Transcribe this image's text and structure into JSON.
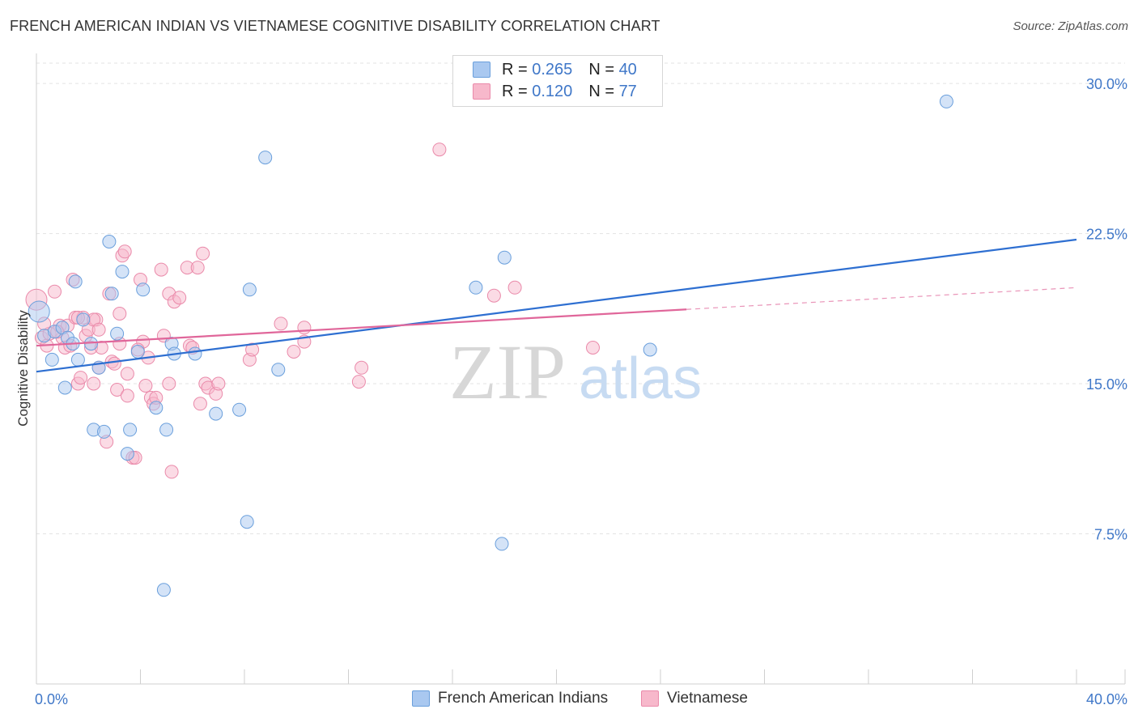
{
  "header": {
    "title": "FRENCH AMERICAN INDIAN VS VIETNAMESE COGNITIVE DISABILITY CORRELATION CHART",
    "source": "Source: ZipAtlas.com"
  },
  "watermark": {
    "zip": "ZIP",
    "atlas": "atlas"
  },
  "legend": {
    "rows": [
      {
        "r_label": "R =",
        "r_value": "0.265",
        "n_label": "N =",
        "n_value": "40",
        "color": "#a9c8f0"
      },
      {
        "r_label": "R =",
        "r_value": "0.120",
        "n_label": "N =",
        "n_value": "77",
        "color": "#f7b8cb"
      }
    ]
  },
  "bottom_legend": {
    "items": [
      {
        "label": "French American Indians",
        "color": "#a9c8f0"
      },
      {
        "label": "Vietnamese",
        "color": "#f7b8cb"
      }
    ]
  },
  "chart_data": {
    "type": "scatter",
    "title": "FRENCH AMERICAN INDIAN VS VIETNAMESE COGNITIVE DISABILITY CORRELATION CHART",
    "xlabel": "",
    "ylabel": "Cognitive Disability",
    "xlim": [
      0,
      40
    ],
    "ylim": [
      0,
      31.5
    ],
    "x_tick_labels": [
      "0.0%",
      "40.0%"
    ],
    "y_ticks": [
      7.5,
      15.0,
      22.5,
      30.0
    ],
    "y_tick_labels": [
      "7.5%",
      "15.0%",
      "22.5%",
      "30.0%"
    ],
    "grid": true,
    "legend_position": "top-center",
    "series": [
      {
        "name": "French American Indians",
        "color": "#a9c8f0",
        "edge_color": "#6a9fdc",
        "line_color": "#2e6fd1",
        "trend": {
          "x": [
            0,
            40
          ],
          "y": [
            15.6,
            22.2
          ],
          "dashed_from": null
        },
        "points": [
          [
            0.1,
            18.6
          ],
          [
            0.3,
            17.4
          ],
          [
            0.6,
            16.2
          ],
          [
            0.7,
            17.6
          ],
          [
            1.0,
            17.8
          ],
          [
            1.1,
            14.8
          ],
          [
            1.2,
            17.3
          ],
          [
            1.4,
            17.0
          ],
          [
            1.5,
            20.1
          ],
          [
            1.6,
            16.2
          ],
          [
            1.8,
            18.2
          ],
          [
            2.1,
            17.0
          ],
          [
            2.2,
            12.7
          ],
          [
            2.4,
            15.8
          ],
          [
            2.6,
            12.6
          ],
          [
            2.8,
            22.1
          ],
          [
            2.9,
            19.5
          ],
          [
            3.1,
            17.5
          ],
          [
            3.3,
            20.6
          ],
          [
            3.5,
            11.5
          ],
          [
            3.6,
            12.7
          ],
          [
            3.9,
            16.6
          ],
          [
            4.1,
            19.7
          ],
          [
            4.6,
            13.8
          ],
          [
            4.9,
            4.7
          ],
          [
            5.0,
            12.7
          ],
          [
            5.2,
            17.0
          ],
          [
            5.3,
            16.5
          ],
          [
            6.1,
            16.5
          ],
          [
            6.9,
            13.5
          ],
          [
            7.8,
            13.7
          ],
          [
            8.1,
            8.1
          ],
          [
            8.2,
            19.7
          ],
          [
            8.8,
            26.3
          ],
          [
            9.3,
            15.7
          ],
          [
            16.9,
            19.8
          ],
          [
            17.9,
            7.0
          ],
          [
            18.0,
            21.3
          ],
          [
            23.6,
            16.7
          ],
          [
            35.0,
            29.1
          ]
        ]
      },
      {
        "name": "Vietnamese",
        "color": "#f7b8cb",
        "edge_color": "#ea8aaa",
        "line_color": "#e0669a",
        "trend": {
          "x": [
            0,
            40
          ],
          "y": [
            16.9,
            19.8
          ],
          "dashed_from": 25
        },
        "points": [
          [
            0.0,
            19.2
          ],
          [
            0.2,
            17.3
          ],
          [
            0.4,
            16.9
          ],
          [
            0.5,
            17.5
          ],
          [
            0.7,
            19.6
          ],
          [
            0.9,
            17.9
          ],
          [
            1.0,
            17.3
          ],
          [
            1.1,
            16.8
          ],
          [
            1.2,
            17.9
          ],
          [
            1.3,
            16.9
          ],
          [
            1.4,
            20.2
          ],
          [
            1.5,
            18.3
          ],
          [
            1.6,
            15.0
          ],
          [
            1.7,
            15.3
          ],
          [
            1.8,
            18.3
          ],
          [
            1.9,
            17.4
          ],
          [
            2.0,
            17.7
          ],
          [
            2.1,
            16.8
          ],
          [
            2.2,
            15.0
          ],
          [
            2.3,
            18.2
          ],
          [
            2.4,
            15.8
          ],
          [
            2.5,
            16.8
          ],
          [
            2.7,
            12.1
          ],
          [
            2.8,
            19.5
          ],
          [
            2.9,
            16.1
          ],
          [
            3.0,
            16.0
          ],
          [
            3.1,
            14.7
          ],
          [
            3.2,
            18.5
          ],
          [
            3.3,
            21.4
          ],
          [
            3.4,
            21.6
          ],
          [
            3.5,
            15.5
          ],
          [
            3.5,
            14.4
          ],
          [
            3.7,
            11.3
          ],
          [
            3.8,
            11.3
          ],
          [
            4.0,
            20.2
          ],
          [
            4.1,
            17.1
          ],
          [
            4.2,
            14.9
          ],
          [
            4.3,
            16.3
          ],
          [
            4.4,
            14.3
          ],
          [
            4.5,
            14.0
          ],
          [
            4.6,
            14.3
          ],
          [
            4.8,
            20.7
          ],
          [
            4.9,
            17.4
          ],
          [
            5.1,
            15.0
          ],
          [
            5.1,
            19.5
          ],
          [
            5.2,
            10.6
          ],
          [
            5.3,
            19.1
          ],
          [
            5.5,
            19.3
          ],
          [
            5.8,
            20.8
          ],
          [
            5.9,
            16.9
          ],
          [
            6.0,
            16.8
          ],
          [
            6.2,
            20.8
          ],
          [
            6.3,
            14.0
          ],
          [
            6.4,
            21.5
          ],
          [
            6.5,
            15.0
          ],
          [
            6.6,
            14.8
          ],
          [
            6.9,
            14.5
          ],
          [
            7.0,
            15.0
          ],
          [
            8.2,
            16.2
          ],
          [
            8.3,
            16.7
          ],
          [
            9.4,
            18.0
          ],
          [
            9.9,
            16.6
          ],
          [
            10.3,
            17.1
          ],
          [
            10.3,
            17.8
          ],
          [
            12.4,
            15.1
          ],
          [
            12.5,
            15.8
          ],
          [
            15.5,
            26.7
          ],
          [
            17.6,
            19.4
          ],
          [
            18.4,
            19.8
          ],
          [
            21.4,
            16.8
          ],
          [
            0.3,
            18.0
          ],
          [
            0.8,
            17.6
          ],
          [
            1.6,
            18.3
          ],
          [
            2.2,
            18.2
          ],
          [
            2.4,
            17.7
          ],
          [
            3.2,
            17.0
          ],
          [
            3.9,
            16.7
          ]
        ]
      }
    ]
  }
}
